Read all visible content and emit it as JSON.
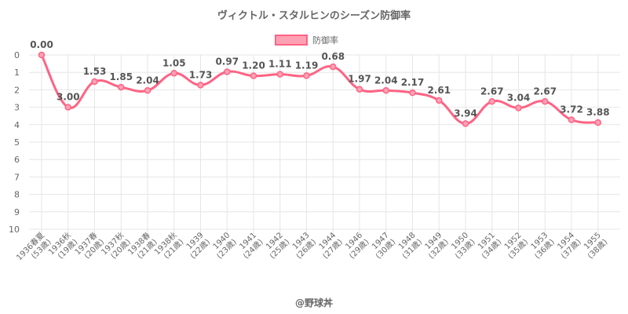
{
  "colors": {
    "line": "#ff6384",
    "fill": "#ffa1b5",
    "grid": "#e6e6e6",
    "text": "#666666"
  },
  "chart_data": {
    "type": "line",
    "title": "ヴィクトル・スタルヒンのシーズン防御率",
    "footer": "@野球丼",
    "legend": {
      "label": "防御率",
      "position": "top"
    },
    "y_reversed": true,
    "ylim": [
      0,
      10
    ],
    "y_ticks": [
      0,
      1,
      2,
      3,
      4,
      5,
      6,
      7,
      8,
      9,
      10
    ],
    "grid": true,
    "categories": [
      "1936春夏(53歳)",
      "1936秋(19歳)",
      "1937春(20歳)",
      "1937秋(20歳)",
      "1938春(21歳)",
      "1938秋(21歳)",
      "1939(22歳)",
      "1940(23歳)",
      "1941(24歳)",
      "1942(25歳)",
      "1943(26歳)",
      "1944(27歳)",
      "1946(29歳)",
      "1947(30歳)",
      "1948(31歳)",
      "1949(32歳)",
      "1950(33歳)",
      "1951(34歳)",
      "1952(35歳)",
      "1953(36歳)",
      "1954(37歳)",
      "1955(38歳)"
    ],
    "x_tick_lines": [
      [
        "1936春夏",
        "(53歳)"
      ],
      [
        "1936秋",
        "(19歳)"
      ],
      [
        "1937春",
        "(20歳)"
      ],
      [
        "1937秋",
        "(20歳)"
      ],
      [
        "1938春",
        "(21歳)"
      ],
      [
        "1938秋",
        "(21歳)"
      ],
      [
        "1939",
        "(22歳)"
      ],
      [
        "1940",
        "(23歳)"
      ],
      [
        "1941",
        "(24歳)"
      ],
      [
        "1942",
        "(25歳)"
      ],
      [
        "1943",
        "(26歳)"
      ],
      [
        "1944",
        "(27歳)"
      ],
      [
        "1946",
        "(29歳)"
      ],
      [
        "1947",
        "(30歳)"
      ],
      [
        "1948",
        "(31歳)"
      ],
      [
        "1949",
        "(32歳)"
      ],
      [
        "1950",
        "(33歳)"
      ],
      [
        "1951",
        "(34歳)"
      ],
      [
        "1952",
        "(35歳)"
      ],
      [
        "1953",
        "(36歳)"
      ],
      [
        "1954",
        "(37歳)"
      ],
      [
        "1955",
        "(38歳)"
      ]
    ],
    "series": [
      {
        "name": "防御率",
        "values": [
          0.0,
          3.0,
          1.53,
          1.85,
          2.04,
          1.05,
          1.73,
          0.97,
          1.2,
          1.11,
          1.19,
          0.68,
          1.97,
          2.04,
          2.17,
          2.61,
          3.94,
          2.67,
          3.04,
          2.67,
          3.72,
          3.88
        ],
        "labels": [
          "0.00",
          "3.00",
          "1.53",
          "1.85",
          "2.04",
          "1.05",
          "1.73",
          "0.97",
          "1.20",
          "1.11",
          "1.19",
          "0.68",
          "1.97",
          "2.04",
          "2.17",
          "2.61",
          "3.94",
          "2.67",
          "3.04",
          "2.67",
          "3.72",
          "3.88"
        ]
      }
    ]
  }
}
